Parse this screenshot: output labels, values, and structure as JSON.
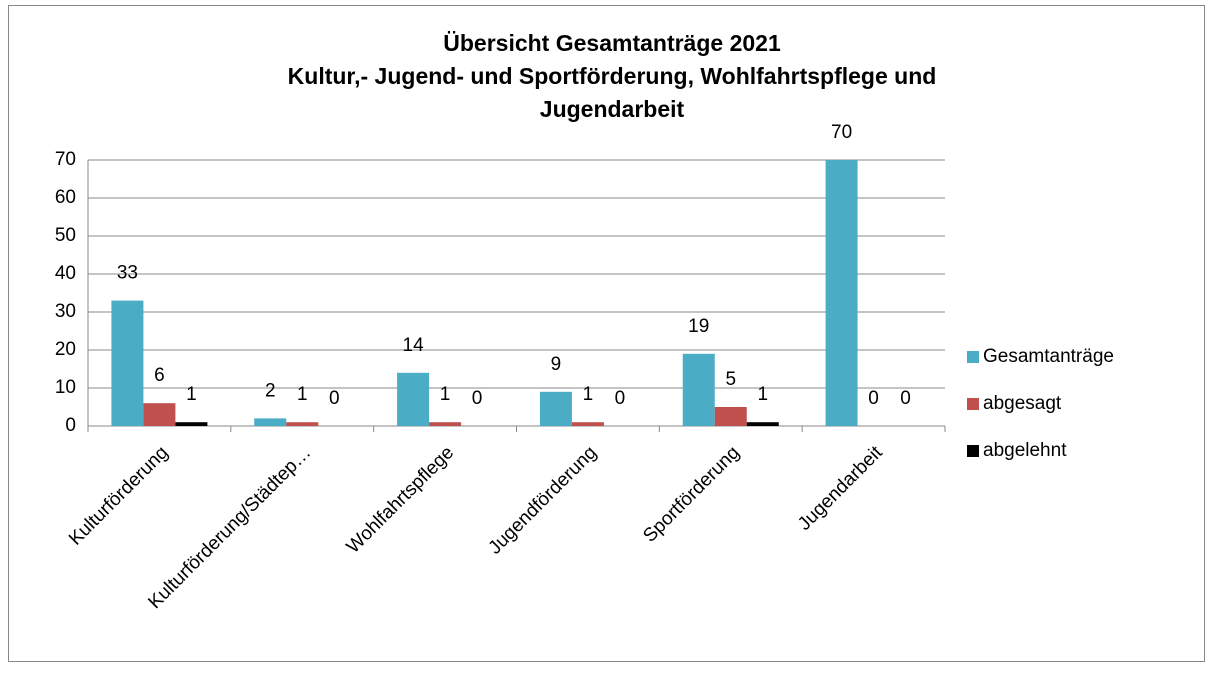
{
  "chart_data": {
    "type": "bar",
    "title": [
      "Übersicht Gesamtanträge 2021",
      "Kultur,- Jugend- und Sportförderung, Wohlfahrtspflege und",
      "Jugendarbeit"
    ],
    "categories": [
      "Kulturförderung",
      "Kulturförderung/Städtep…",
      "Wohlfahrtspflege",
      "Jugendförderung",
      "Sportförderung",
      "Jugendarbeit"
    ],
    "series": [
      {
        "name": "Gesamtanträge",
        "color": "#4bacc6",
        "values": [
          33,
          2,
          14,
          9,
          19,
          70
        ]
      },
      {
        "name": "abgesagt",
        "color": "#c0504d",
        "values": [
          6,
          1,
          1,
          1,
          5,
          0
        ]
      },
      {
        "name": "abgelehnt",
        "color": "#000000",
        "values": [
          1,
          0,
          0,
          0,
          1,
          0
        ]
      }
    ],
    "ylim": [
      0,
      70
    ],
    "yticks": [
      0,
      10,
      20,
      30,
      40,
      50,
      60,
      70
    ],
    "grid": true,
    "legend": "right"
  }
}
